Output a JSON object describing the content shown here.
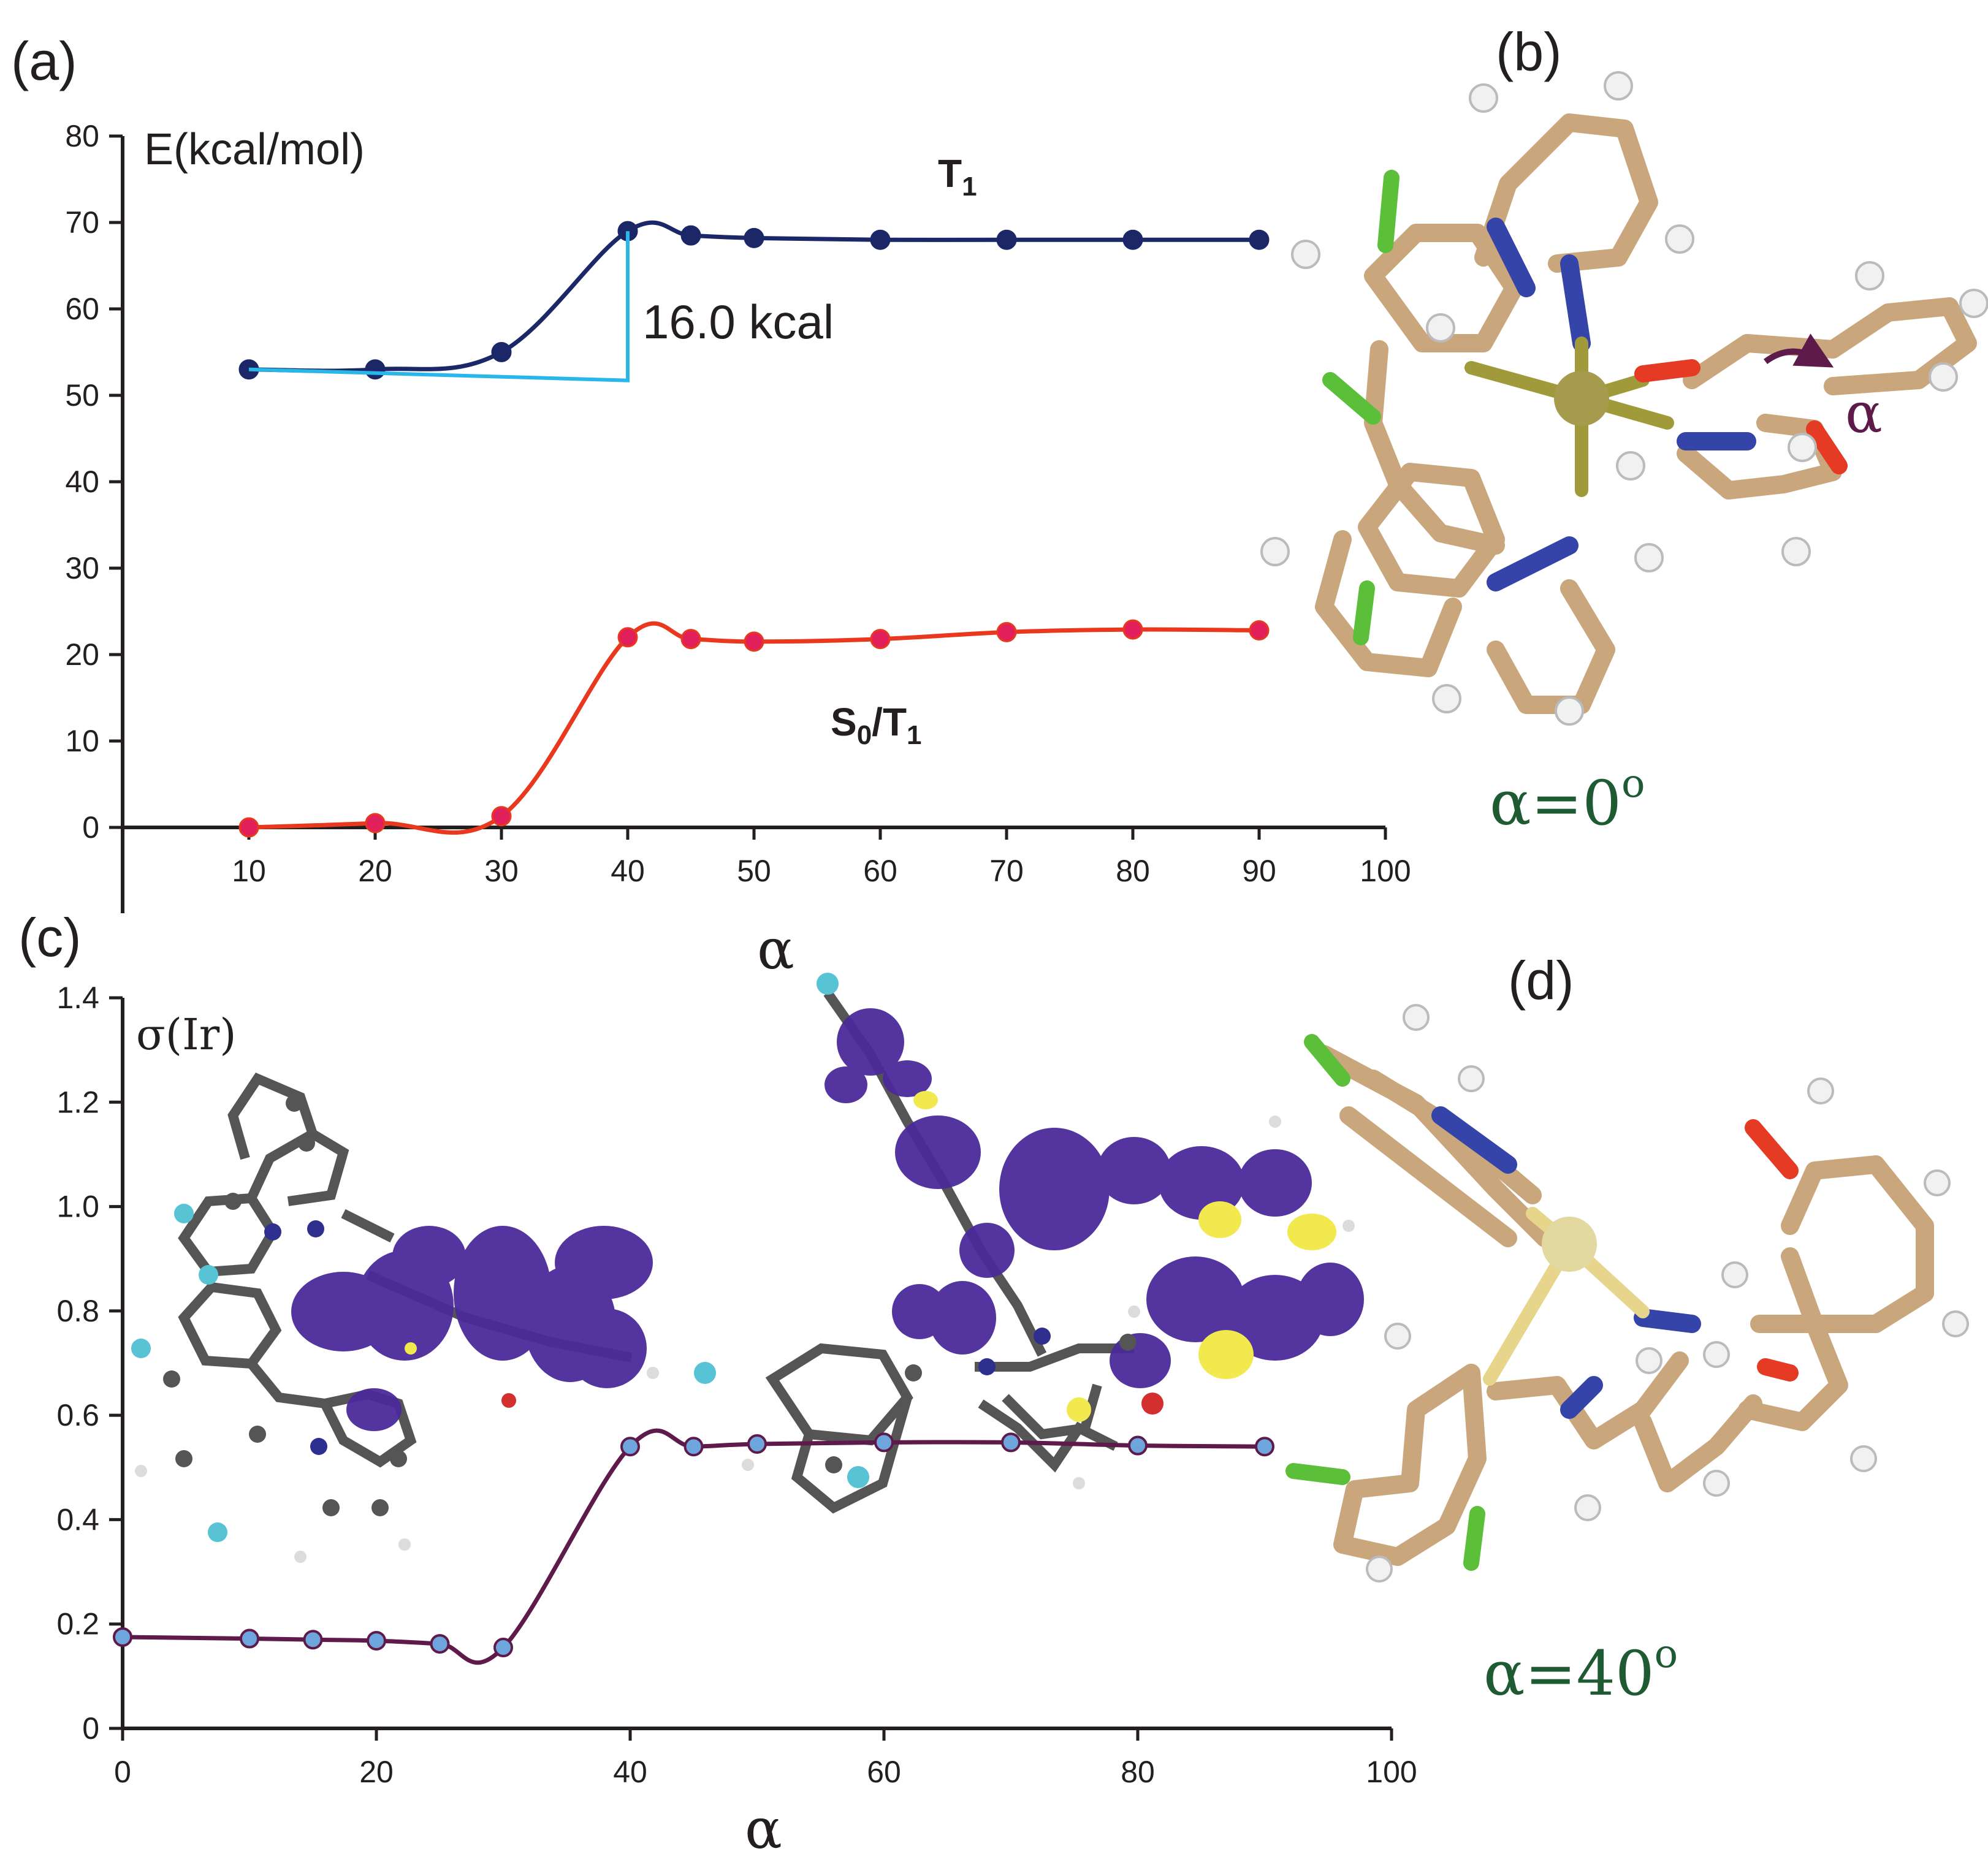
{
  "panels": {
    "a": "(a)",
    "b": "(b)",
    "c": "(c)",
    "d": "(d)"
  },
  "structure_labels": {
    "b_alpha_value": "α=0",
    "b_alpha_sup": "o",
    "d_alpha_value": "α=40",
    "d_alpha_sup": "o",
    "rotation_symbol": "α"
  },
  "colors": {
    "T1_line": "#1b2766",
    "S0T1_line": "#e8391e",
    "S0T1_marker": "#e11f5a",
    "sigma_line": "#5d1a4a",
    "sigma_marker": "#6fa5dd",
    "barrier_line": "#29b6e8",
    "density_lobe": "#4b2a9a",
    "density_small": "#f2e94e",
    "label_green": "#1e5a32"
  },
  "chart_data": [
    {
      "type": "line",
      "panel": "a",
      "ylabel": "E(kcal/mol)",
      "xlabel": "α",
      "xlim": [
        0,
        100
      ],
      "ylim": [
        0,
        80
      ],
      "xticks": [
        10,
        20,
        30,
        40,
        50,
        60,
        70,
        80,
        90,
        100
      ],
      "yticks": [
        0,
        10,
        20,
        30,
        40,
        50,
        60,
        70,
        80
      ],
      "series": [
        {
          "name": "T",
          "name_sub": "1",
          "x": [
            10,
            20,
            30,
            40,
            45,
            50,
            60,
            70,
            80,
            90
          ],
          "y": [
            53,
            53,
            55,
            69,
            68.5,
            68.2,
            68,
            68,
            68,
            68
          ]
        },
        {
          "name": "S",
          "name_sub": "0",
          "name_rest": "/T",
          "name_sub2": "1",
          "x": [
            10,
            20,
            30,
            40,
            45,
            50,
            60,
            70,
            80,
            90
          ],
          "y": [
            0,
            0.5,
            1.3,
            22,
            21.8,
            21.5,
            21.8,
            22.6,
            22.9,
            22.8
          ]
        }
      ],
      "annotation": {
        "text": "16.0 kcal",
        "from": [
          10,
          53
        ],
        "to": [
          40,
          69
        ]
      }
    },
    {
      "type": "line",
      "panel": "c",
      "ylabel": "σ(Ir)",
      "xlabel": "α",
      "xlim": [
        0,
        100
      ],
      "ylim": [
        0,
        1.4
      ],
      "xticks": [
        0,
        20,
        40,
        60,
        80,
        100
      ],
      "yticks": [
        "0",
        "0.2",
        "0.4",
        "0.6",
        "0.8",
        "1.0",
        "1.2",
        "1.4"
      ],
      "series": [
        {
          "x": [
            0,
            10,
            15,
            20,
            25,
            30,
            40,
            45,
            50,
            60,
            70,
            80,
            90
          ],
          "y": [
            0.175,
            0.172,
            0.17,
            0.168,
            0.162,
            0.155,
            0.54,
            0.54,
            0.545,
            0.548,
            0.548,
            0.542,
            0.54
          ]
        }
      ]
    }
  ]
}
